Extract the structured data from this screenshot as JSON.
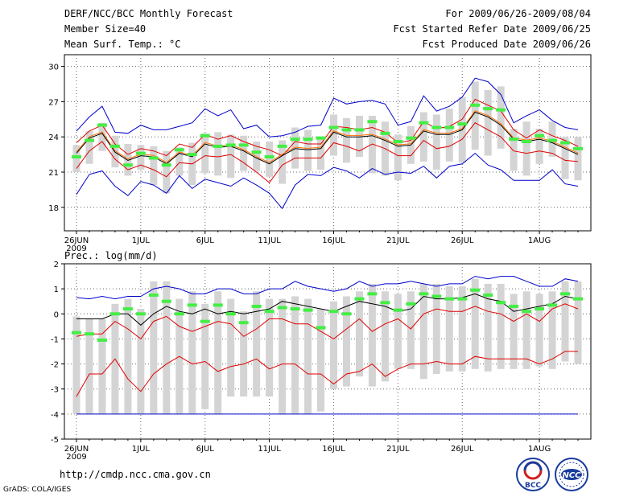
{
  "header": {
    "line1": "DERF/NCC/BCC Monthly Forecast",
    "line2": "Member Size=40",
    "line3": "Mean Surf. Temp.: °C",
    "right1": "For 2009/06/26-2009/08/04",
    "right2": "Fcst Started Refer Date 2009/06/25",
    "right3": "Fcst Produced Date 2009/06/26"
  },
  "footer": {
    "url": "http://cmdp.ncc.cma.gov.cn",
    "grads": "GrADS: COLA/IGES",
    "logo1_text": "BCC",
    "logo2_text": "NCC"
  },
  "colors": {
    "max": "#0000cc",
    "min": "#0000cc",
    "pct": "#e00000",
    "mean": "#000000",
    "median": "#ff7000",
    "obs": "#44ee44",
    "box": "#d4d4d4"
  },
  "chart_data": [
    {
      "type": "line",
      "title": "Mean Surf. Temp.: °C",
      "ylim": [
        16,
        31
      ],
      "yticks": [
        18,
        21,
        24,
        27,
        30
      ],
      "xticks": [
        {
          "day": 0,
          "label": "26JUN",
          "sub": "2009"
        },
        {
          "day": 5,
          "label": "1JUL"
        },
        {
          "day": 10,
          "label": "6JUL"
        },
        {
          "day": 15,
          "label": "11JUL"
        },
        {
          "day": 20,
          "label": "16JUL"
        },
        {
          "day": 25,
          "label": "21JUL"
        },
        {
          "day": 30,
          "label": "26JUL"
        },
        {
          "day": 36,
          "label": "1AUG"
        }
      ],
      "days": 40,
      "series": [
        {
          "name": "max",
          "values": [
            24.5,
            25.7,
            26.6,
            24.4,
            24.3,
            25.0,
            24.6,
            24.6,
            24.9,
            25.2,
            26.4,
            25.8,
            26.3,
            24.7,
            25.0,
            24.0,
            24.1,
            24.4,
            24.9,
            25.0,
            27.3,
            26.8,
            27.0,
            27.1,
            26.8,
            25.0,
            25.3,
            27.5,
            26.2,
            26.6,
            27.4,
            29.0,
            28.7,
            27.6,
            25.2,
            25.8,
            26.3,
            25.4,
            24.8,
            24.6
          ]
        },
        {
          "name": "p90",
          "values": [
            23.5,
            24.5,
            25.0,
            23.4,
            22.5,
            23.0,
            22.8,
            22.4,
            23.4,
            23.1,
            24.2,
            23.8,
            24.1,
            23.6,
            23.2,
            22.9,
            22.4,
            23.6,
            23.4,
            23.4,
            24.9,
            24.8,
            24.6,
            24.8,
            24.4,
            23.5,
            23.7,
            25.3,
            24.7,
            24.9,
            25.5,
            27.2,
            26.7,
            26.2,
            24.6,
            23.9,
            24.6,
            24.1,
            23.7,
            23.2
          ]
        },
        {
          "name": "mean",
          "values": [
            22.6,
            23.9,
            24.3,
            22.7,
            22.0,
            22.4,
            22.3,
            21.7,
            22.6,
            22.3,
            23.4,
            23.1,
            23.2,
            22.8,
            22.2,
            21.7,
            22.4,
            23.0,
            22.9,
            23.0,
            24.4,
            24.0,
            24.0,
            24.1,
            23.7,
            23.2,
            23.3,
            24.5,
            24.2,
            24.2,
            24.6,
            26.1,
            25.7,
            25.0,
            23.8,
            23.6,
            23.8,
            23.5,
            23.0,
            22.5
          ]
        },
        {
          "name": "p10",
          "values": [
            21.3,
            22.8,
            23.6,
            22.1,
            21.2,
            21.6,
            21.2,
            20.6,
            21.8,
            21.7,
            22.4,
            22.3,
            22.5,
            21.8,
            21.0,
            20.1,
            21.6,
            22.2,
            22.2,
            22.2,
            23.5,
            23.2,
            22.8,
            23.4,
            23.0,
            22.4,
            22.4,
            23.7,
            23.0,
            23.2,
            23.8,
            25.2,
            24.6,
            24.0,
            22.8,
            22.6,
            22.8,
            22.6,
            22.0,
            21.9
          ]
        },
        {
          "name": "min",
          "values": [
            19.1,
            20.8,
            21.1,
            19.8,
            19.0,
            20.2,
            19.9,
            19.2,
            20.7,
            19.6,
            20.4,
            20.1,
            19.8,
            20.5,
            19.9,
            19.2,
            17.9,
            19.9,
            20.8,
            20.7,
            21.4,
            21.1,
            20.5,
            21.3,
            20.8,
            21.0,
            20.9,
            21.5,
            20.5,
            21.5,
            21.7,
            22.6,
            21.6,
            21.2,
            20.3,
            20.3,
            20.3,
            21.2,
            20.0,
            19.8
          ]
        },
        {
          "name": "obs",
          "values": [
            22.3,
            23.7,
            25.0,
            23.2,
            21.6,
            22.6,
            22.2,
            21.6,
            22.9,
            22.5,
            24.1,
            23.2,
            23.3,
            23.3,
            22.7,
            22.3,
            23.2,
            23.8,
            23.8,
            23.9,
            24.8,
            24.6,
            24.6,
            25.3,
            24.3,
            23.6,
            23.9,
            25.2,
            24.8,
            24.8,
            25.1,
            26.7,
            26.4,
            26.3,
            23.8,
            23.6,
            24.1,
            23.7,
            23.5,
            23.0
          ]
        },
        {
          "name": "box_lo",
          "values": [
            21.0,
            21.7,
            22.8,
            21.4,
            20.7,
            21.2,
            19.9,
            19.2,
            20.7,
            19.9,
            20.9,
            20.7,
            20.5,
            21.1,
            21.1,
            20.6,
            20.0,
            21.3,
            21.1,
            21.2,
            22.4,
            21.8,
            22.3,
            20.9,
            20.7,
            20.3,
            21.7,
            21.9,
            21.2,
            21.9,
            21.8,
            22.9,
            22.4,
            23.0,
            21.1,
            20.7,
            21.7,
            22.3,
            20.4,
            20.3
          ]
        },
        {
          "name": "box_hi",
          "values": [
            23.3,
            24.5,
            25.2,
            24.1,
            23.4,
            23.3,
            23.2,
            22.8,
            23.1,
            23.5,
            24.3,
            24.4,
            24.2,
            24.1,
            23.6,
            23.6,
            23.7,
            24.8,
            24.6,
            23.8,
            25.9,
            25.6,
            25.8,
            25.8,
            25.3,
            24.2,
            24.9,
            26.1,
            25.9,
            26.4,
            27.4,
            28.7,
            28.0,
            28.3,
            24.7,
            25.3,
            24.7,
            25.3,
            24.0,
            24.0
          ]
        }
      ]
    },
    {
      "type": "line",
      "title": "Prec.: log(mm/d)",
      "ylim": [
        -5,
        2
      ],
      "yticks": [
        -5,
        -4,
        -3,
        -2,
        -1,
        0,
        1,
        2
      ],
      "xticks": [
        {
          "day": 0,
          "label": "26JUN",
          "sub": "2009"
        },
        {
          "day": 5,
          "label": "1JUL"
        },
        {
          "day": 10,
          "label": "6JUL"
        },
        {
          "day": 15,
          "label": "11JUL"
        },
        {
          "day": 20,
          "label": "16JUL"
        },
        {
          "day": 25,
          "label": "21JUL"
        },
        {
          "day": 30,
          "label": "26JUL"
        },
        {
          "day": 36,
          "label": "1AUG"
        }
      ],
      "days": 40,
      "series": [
        {
          "name": "max",
          "values": [
            0.65,
            0.6,
            0.7,
            0.6,
            0.7,
            0.7,
            1.0,
            1.1,
            1.0,
            0.8,
            0.8,
            1.0,
            1.0,
            0.8,
            0.8,
            1.0,
            1.0,
            1.3,
            1.1,
            1.0,
            0.9,
            1.0,
            1.3,
            1.1,
            1.2,
            1.2,
            1.3,
            1.2,
            1.1,
            1.2,
            1.2,
            1.5,
            1.4,
            1.5,
            1.5,
            1.3,
            1.1,
            1.1,
            1.4,
            1.3
          ]
        },
        {
          "name": "mean",
          "values": [
            -0.2,
            -0.2,
            -0.2,
            0.0,
            0.0,
            -0.45,
            0.0,
            0.3,
            0.1,
            0.0,
            0.2,
            0.0,
            0.1,
            0.0,
            0.1,
            0.2,
            0.5,
            0.4,
            0.3,
            0.2,
            0.1,
            0.3,
            0.5,
            0.4,
            0.3,
            0.1,
            0.2,
            0.7,
            0.6,
            0.6,
            0.65,
            0.8,
            0.6,
            0.5,
            0.1,
            0.2,
            0.3,
            0.4,
            0.7,
            0.6
          ]
        },
        {
          "name": "p90_red",
          "values": [
            -0.9,
            -0.8,
            -0.8,
            -0.3,
            -0.6,
            -1.0,
            -0.3,
            -0.1,
            -0.5,
            -0.7,
            -0.5,
            -0.3,
            -0.4,
            -0.9,
            -0.6,
            -0.2,
            -0.2,
            -0.4,
            -0.4,
            -0.7,
            -1.0,
            -0.6,
            -0.2,
            -0.7,
            -0.4,
            -0.2,
            -0.6,
            0.0,
            0.2,
            0.1,
            0.1,
            0.3,
            0.1,
            0.0,
            -0.3,
            0.0,
            -0.3,
            0.2,
            0.4,
            0.2
          ]
        },
        {
          "name": "p10_red",
          "values": [
            -3.3,
            -2.4,
            -2.4,
            -1.8,
            -2.6,
            -3.1,
            -2.4,
            -2.0,
            -1.7,
            -2.0,
            -1.9,
            -2.3,
            -2.1,
            -2.0,
            -1.8,
            -2.2,
            -2.0,
            -2.0,
            -2.4,
            -2.4,
            -2.8,
            -2.4,
            -2.3,
            -2.0,
            -2.5,
            -2.2,
            -2.0,
            -2.0,
            -1.9,
            -2.0,
            -2.0,
            -1.7,
            -1.8,
            -1.8,
            -1.8,
            -1.8,
            -2.0,
            -1.8,
            -1.5,
            -1.5
          ]
        },
        {
          "name": "min",
          "values": [
            -4.0,
            -4.0,
            -4.0,
            -4.0,
            -4.0,
            -4.0,
            -4.0,
            -4.0,
            -4.0,
            -4.0,
            -4.0,
            -4.0,
            -4.0,
            -4.0,
            -4.0,
            -4.0,
            -4.0,
            -4.0,
            -4.0,
            -4.0,
            -4.0,
            -4.0,
            -4.0,
            -4.0,
            -4.0,
            -4.0,
            -4.0,
            -4.0,
            -4.0,
            -4.0,
            -4.0,
            -4.0,
            -4.0,
            -4.0,
            -4.0,
            -4.0,
            -4.0,
            -4.0,
            -4.0,
            -4.0
          ]
        },
        {
          "name": "obs",
          "values": [
            -0.75,
            -0.8,
            -1.05,
            0.0,
            0.2,
            0.0,
            0.75,
            0.5,
            0.0,
            0.35,
            -0.3,
            0.35,
            0.0,
            -0.35,
            0.3,
            0.1,
            0.25,
            0.2,
            0.15,
            -0.55,
            0.1,
            0.0,
            0.6,
            0.8,
            0.45,
            0.15,
            0.4,
            0.8,
            0.7,
            0.6,
            0.6,
            0.95,
            0.75,
            0.45,
            0.3,
            0.1,
            0.2,
            0.35,
            0.8,
            0.6
          ]
        },
        {
          "name": "box_lo",
          "values": [
            -4.0,
            -4.0,
            -4.0,
            -4.0,
            -4.0,
            -4.0,
            -4.0,
            -4.0,
            -4.0,
            -4.0,
            -3.8,
            -4.0,
            -3.3,
            -3.3,
            -3.3,
            -3.3,
            -4.0,
            -4.0,
            -4.0,
            -3.9,
            -3.0,
            -2.9,
            -2.5,
            -2.9,
            -2.7,
            -2.2,
            -2.2,
            -2.6,
            -2.4,
            -2.3,
            -2.3,
            -2.2,
            -2.3,
            -2.2,
            -2.2,
            -2.2,
            -2.1,
            -2.2,
            -1.9,
            -2.0
          ]
        },
        {
          "name": "box_hi",
          "values": [
            -0.1,
            -0.2,
            -0.2,
            0.4,
            0.6,
            0.2,
            1.3,
            1.3,
            0.6,
            0.9,
            0.4,
            0.9,
            0.6,
            0.1,
            0.9,
            0.6,
            0.6,
            0.7,
            0.6,
            0.2,
            0.5,
            0.7,
            0.9,
            1.2,
            0.9,
            0.8,
            0.9,
            1.2,
            1.2,
            1.1,
            1.1,
            1.4,
            1.2,
            1.2,
            0.8,
            0.9,
            0.8,
            0.9,
            1.3,
            1.3
          ]
        }
      ]
    }
  ]
}
